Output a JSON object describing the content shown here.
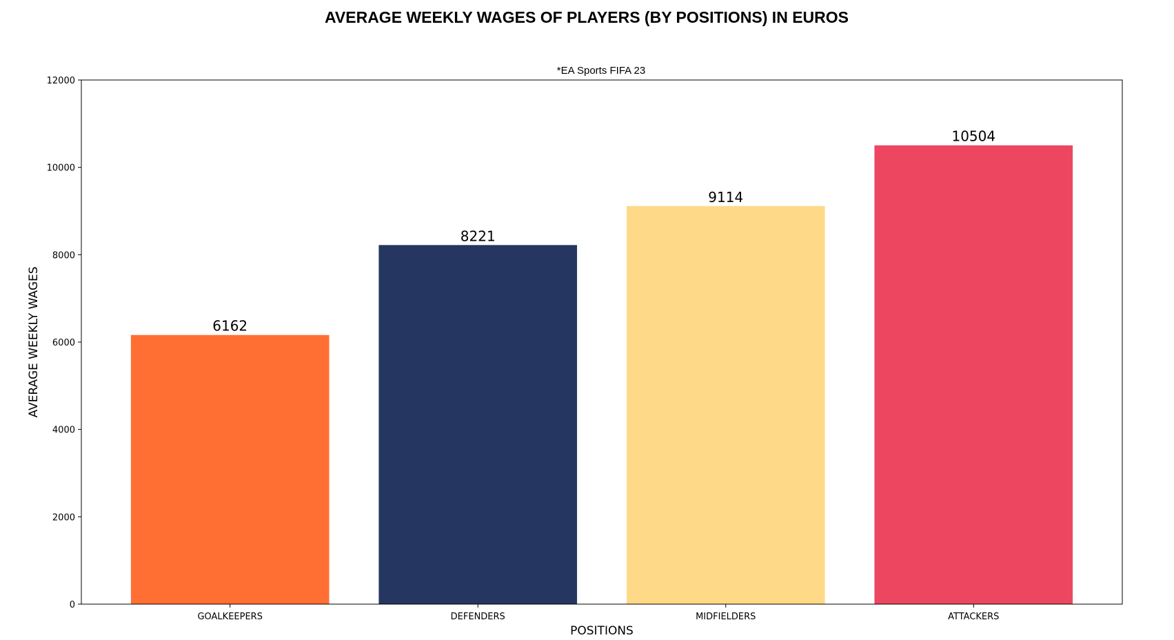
{
  "chart_data": {
    "type": "bar",
    "title": "AVERAGE WEEKLY WAGES OF PLAYERS (BY POSITIONS) IN EUROS",
    "subtitle": "*EA Sports FIFA 23",
    "xlabel": "POSITIONS",
    "ylabel": "AVERAGE WEEKLY WAGES",
    "categories": [
      "GOALKEEPERS",
      "DEFENDERS",
      "MIDFIELDERS",
      "ATTACKERS"
    ],
    "values": [
      6162,
      8221,
      9114,
      10504
    ],
    "data_labels": [
      "6162",
      "8221",
      "9114",
      "10504"
    ],
    "colors": [
      "#FF6F33",
      "#253660",
      "#FED987",
      "#EC4660"
    ],
    "ylim": [
      0,
      12000
    ],
    "yticks": [
      0,
      2000,
      4000,
      6000,
      8000,
      10000,
      12000
    ],
    "grid": false,
    "legend": "none"
  }
}
